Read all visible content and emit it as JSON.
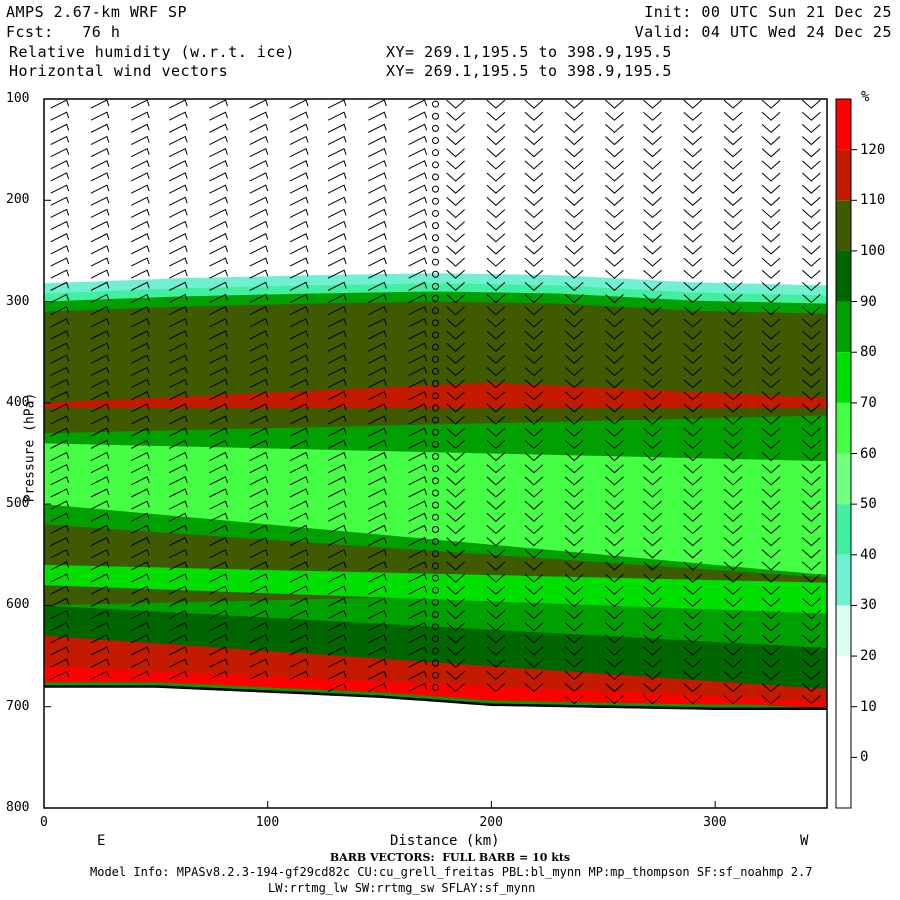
{
  "header": {
    "model": "AMPS 2.67-km WRF SP",
    "fcst": "Fcst:   76 h",
    "field1": "Relative humidity (w.r.t. ice)",
    "field2": "Horizontal wind vectors",
    "init": "Init: 00 UTC Sun 21 Dec 25",
    "valid": "Valid: 04 UTC Wed 24 Dec 25",
    "xy1": "XY= 269.1,195.5 to 398.9,195.5",
    "xy2": "XY= 269.1,195.5 to 398.9,195.5"
  },
  "chart_data": {
    "type": "heatmap",
    "xlabel": "Distance (km)",
    "ylabel": "Pressure (hPa)",
    "xlim": [
      0,
      350
    ],
    "ylim": [
      800,
      100
    ],
    "x_ticks": [
      "0",
      "100",
      "200",
      "300"
    ],
    "y_ticks": [
      "100",
      "200",
      "300",
      "400",
      "500",
      "600",
      "700",
      "800"
    ],
    "x_end_labels": {
      "left": "E",
      "right": "W"
    },
    "colorbar": {
      "unit": "%",
      "levels": [
        "120",
        "110",
        "100",
        "90",
        "80",
        "70",
        "60",
        "50",
        "40",
        "30",
        "20",
        "10",
        "0"
      ],
      "colors": [
        "#ff0000",
        "#c41a00",
        "#3f5a00",
        "#006600",
        "#00a000",
        "#00e000",
        "#44ff44",
        "#70ff80",
        "#40f0a0",
        "#70f0d0",
        "#d8fff0",
        "#ffffff",
        "#ffffff",
        "#ffffff"
      ]
    },
    "terrain_pressure": [
      [
        0,
        680
      ],
      [
        50,
        680
      ],
      [
        100,
        685
      ],
      [
        150,
        690
      ],
      [
        200,
        698
      ],
      [
        250,
        700
      ],
      [
        300,
        702
      ],
      [
        350,
        702
      ]
    ],
    "moist_top_pressure": [
      [
        0,
        288
      ],
      [
        60,
        283
      ],
      [
        120,
        280
      ],
      [
        175,
        278
      ],
      [
        230,
        280
      ],
      [
        290,
        287
      ],
      [
        350,
        290
      ]
    ],
    "barb_columns_km": [
      7,
      25,
      43,
      60,
      78,
      96,
      114,
      131,
      149,
      167,
      175,
      184,
      202,
      219,
      237,
      255,
      272,
      290,
      308,
      325,
      343
    ]
  },
  "footer": {
    "barb_note": "BARB VECTORS:  FULL BARB = 10 kts",
    "model_info": "Model Info: MPASv8.2.3-194-gf29cd82c CU:cu_grell_freitas PBL:bl_mynn MP:mp_thompson SF:sf_noahmp 2.7",
    "model_info2": "LW:rrtmg_lw SW:rrtmg_sw SFLAY:sf_mynn"
  }
}
